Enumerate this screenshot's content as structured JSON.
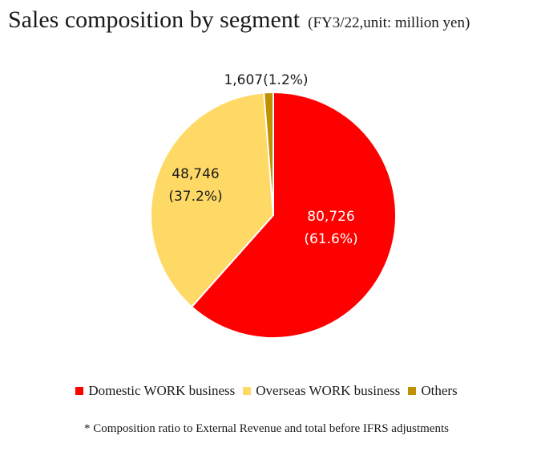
{
  "title": "Sales composition by segment",
  "subtitle": "(FY3/22,unit: million yen)",
  "chart_data": {
    "type": "pie",
    "categories": [
      "Domestic WORK business",
      "Overseas WORK business",
      "Others"
    ],
    "values": [
      80726,
      48746,
      1607
    ],
    "percentages": [
      "61.6%",
      "37.2%",
      "1.2%"
    ],
    "value_labels": [
      "80,726",
      "48,746",
      "1,607"
    ],
    "colors": [
      "#ff0000",
      "#ffd966",
      "#bf9000"
    ],
    "label_colors": [
      "#ffffff",
      "#1a1a1a",
      "#1a1a1a"
    ],
    "legend_position": "bottom"
  },
  "footnote": "* Composition ratio to External Revenue and total before IFRS adjustments"
}
